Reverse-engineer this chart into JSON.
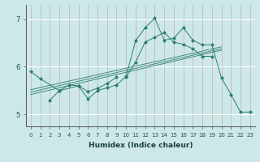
{
  "xlabel": "Humidex (Indice chaleur)",
  "x_values": [
    0,
    1,
    2,
    3,
    4,
    5,
    6,
    7,
    8,
    9,
    10,
    11,
    12,
    13,
    14,
    15,
    16,
    17,
    18,
    19,
    20,
    21,
    22,
    23
  ],
  "line1_y": [
    5.9,
    5.75,
    null,
    5.5,
    null,
    5.6,
    5.48,
    5.55,
    5.65,
    5.78,
    null,
    null,
    null,
    null,
    null,
    null,
    null,
    null,
    null,
    null,
    null,
    null,
    null,
    null
  ],
  "line2_y": [
    null,
    null,
    5.3,
    5.5,
    5.62,
    5.6,
    5.33,
    5.5,
    5.56,
    5.62,
    5.8,
    6.55,
    6.82,
    7.02,
    6.56,
    6.6,
    6.82,
    6.56,
    6.46,
    6.46,
    5.77,
    5.42,
    5.05,
    5.05
  ],
  "line3_y": [
    null,
    null,
    null,
    null,
    null,
    null,
    null,
    null,
    null,
    null,
    5.78,
    6.1,
    6.52,
    6.62,
    6.72,
    6.52,
    6.47,
    6.38,
    6.22,
    6.22,
    null,
    null,
    null,
    null
  ],
  "trend1_x": [
    0,
    20
  ],
  "trend1_y": [
    5.42,
    6.35
  ],
  "trend2_x": [
    0,
    20
  ],
  "trend2_y": [
    5.47,
    6.38
  ],
  "trend3_x": [
    0,
    20
  ],
  "trend3_y": [
    5.52,
    6.42
  ],
  "ylim": [
    4.75,
    7.3
  ],
  "yticks": [
    5,
    6,
    7
  ],
  "xticks": [
    0,
    1,
    2,
    3,
    4,
    5,
    6,
    7,
    8,
    9,
    10,
    11,
    12,
    13,
    14,
    15,
    16,
    17,
    18,
    19,
    20,
    21,
    22,
    23
  ],
  "line_color": "#2e7d6e",
  "bg_color": "#cce8e8",
  "grid_h_color": "#b0d0d0",
  "grid_v_color": "#e8a0a0",
  "marker_size": 2.5
}
